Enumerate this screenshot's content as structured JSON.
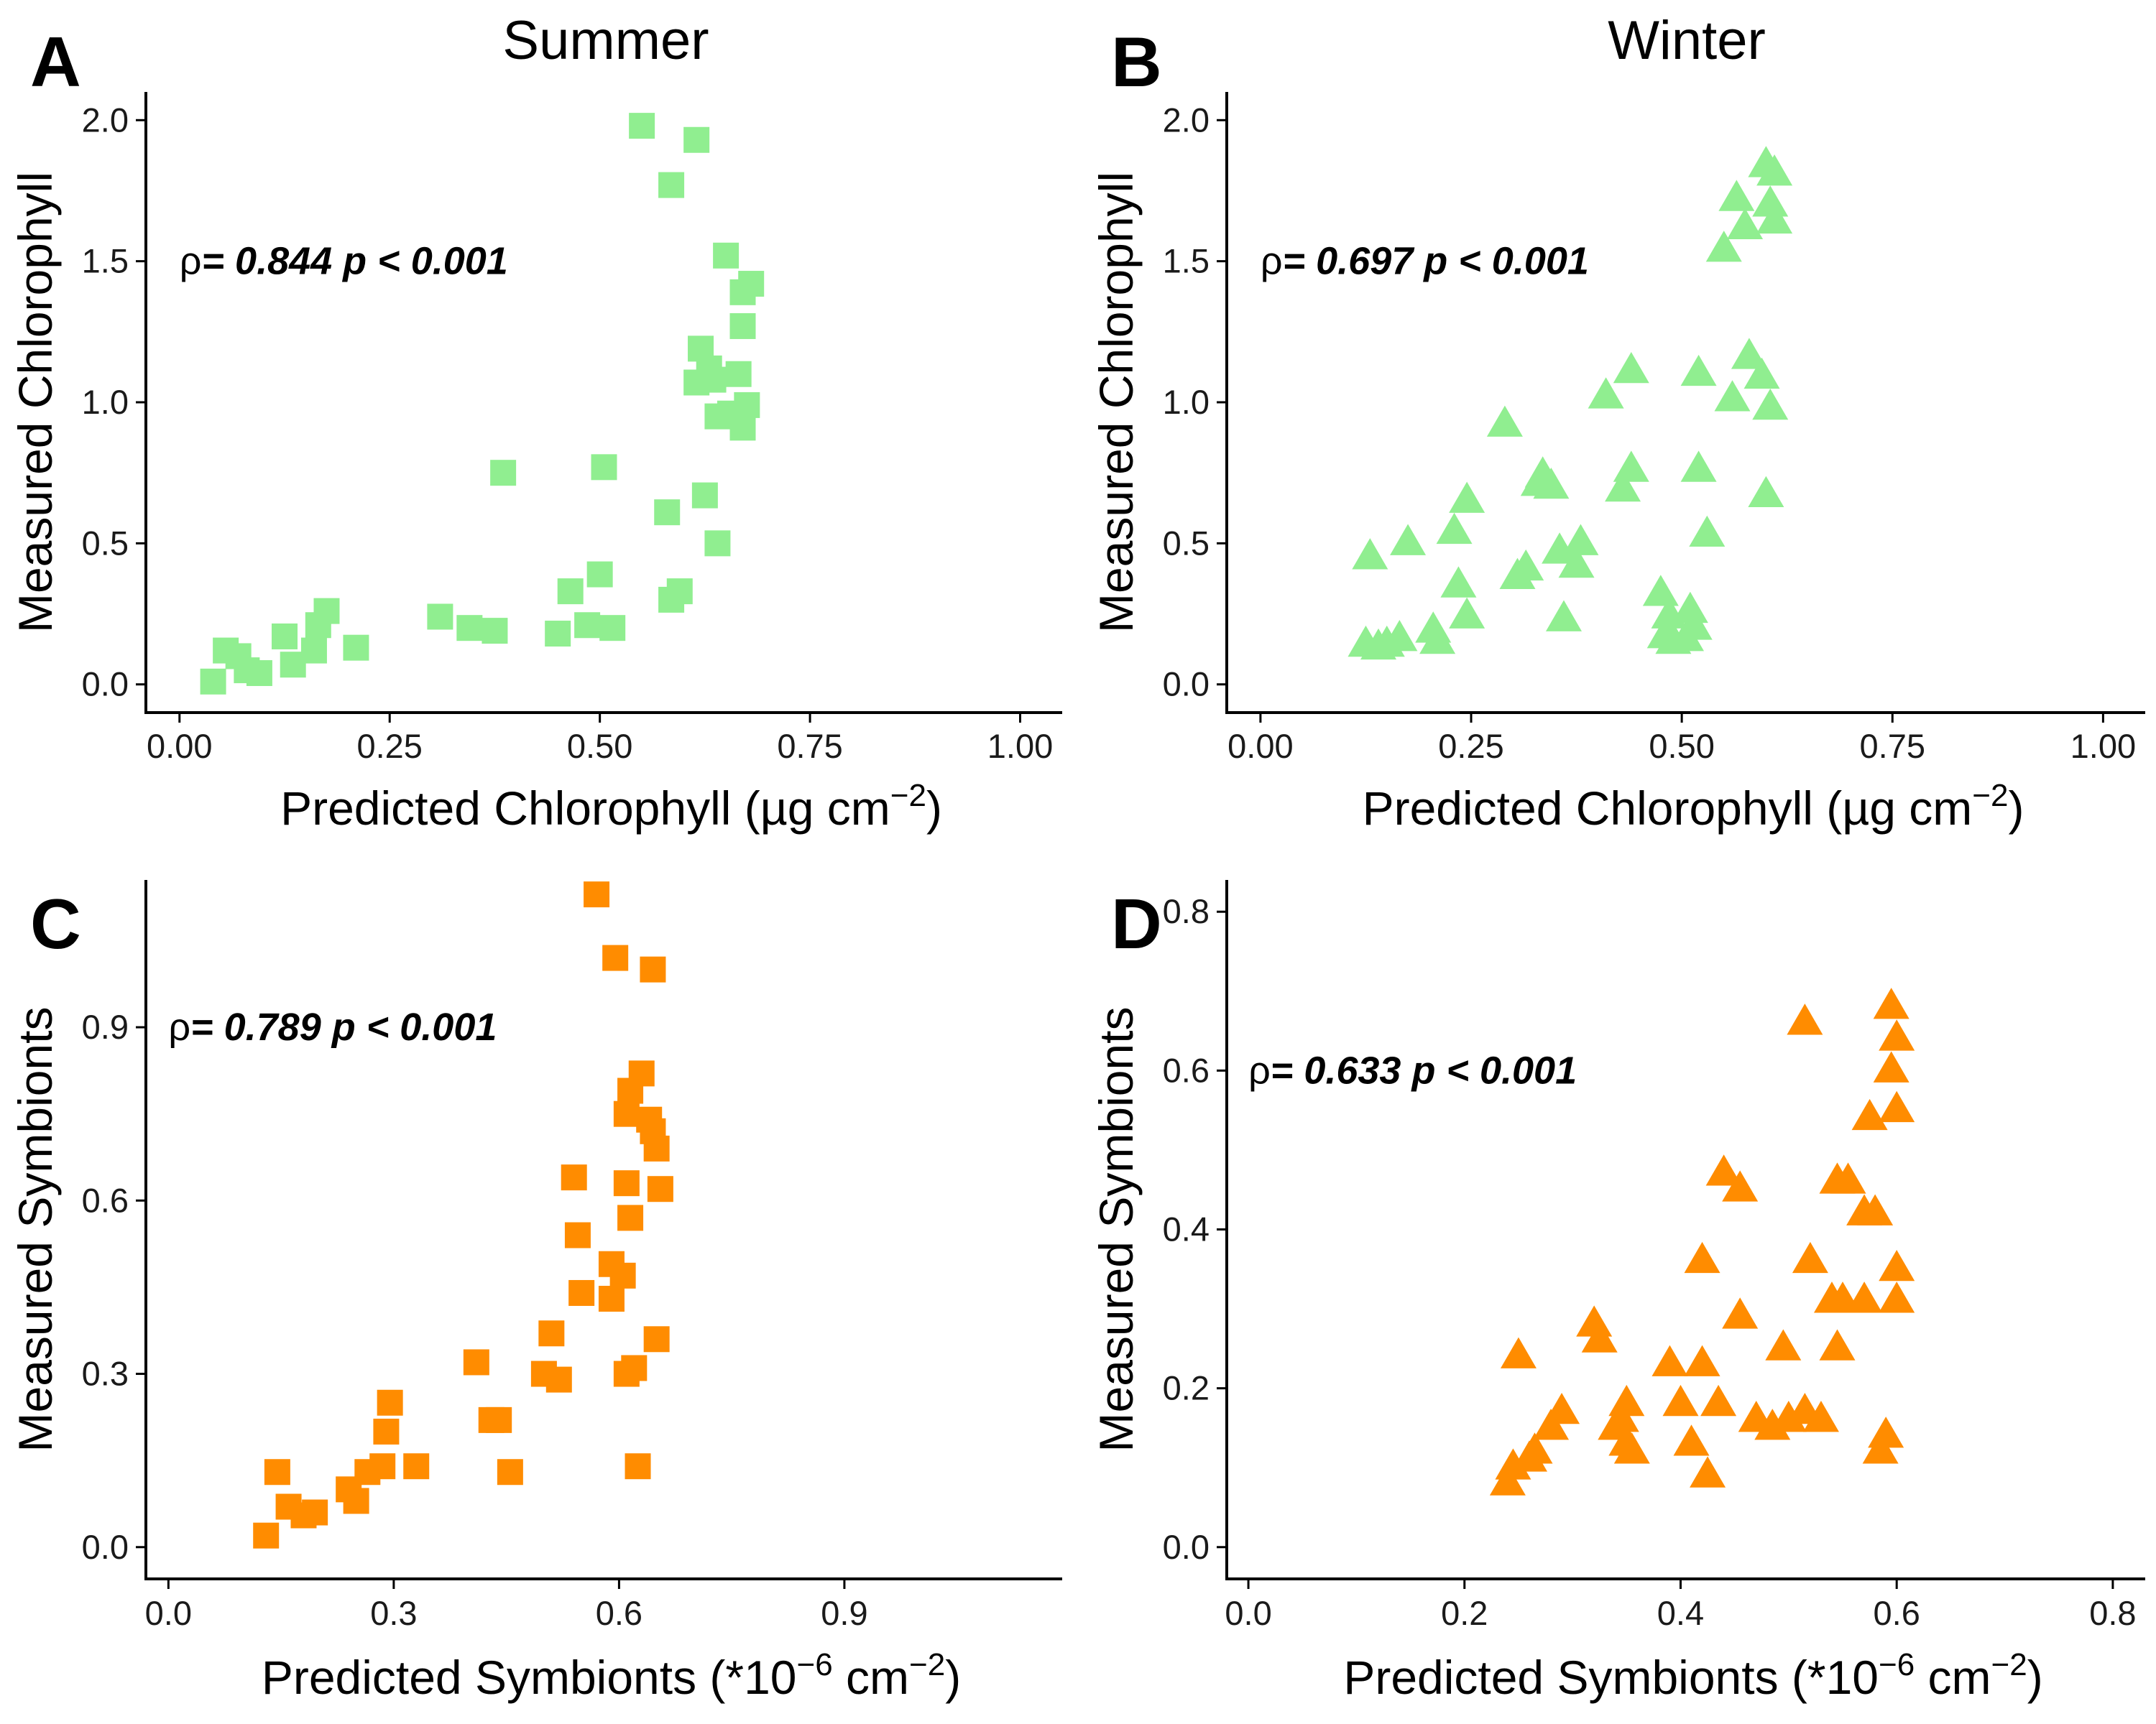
{
  "figure": {
    "column_titles": [
      "Summer",
      "Winter"
    ]
  },
  "chart_data": [
    {
      "id": "A",
      "type": "scatter",
      "panel_label": "A",
      "title": "Summer",
      "xlabel": "Predicted Chlorophyll (µg cm",
      "xlabel_sup": "−2",
      "xlabel_end": ")",
      "ylabel": "Measured Chlorophyll",
      "xlim": [
        -0.04,
        1.05
      ],
      "ylim": [
        -0.1,
        2.1
      ],
      "xticks": [
        0.0,
        0.25,
        0.5,
        0.75,
        1.0
      ],
      "xtick_labels": [
        "0.00",
        "0.25",
        "0.50",
        "0.75",
        "1.00"
      ],
      "yticks": [
        0.0,
        0.5,
        1.0,
        1.5,
        2.0
      ],
      "ytick_labels": [
        "0.0",
        "0.5",
        "1.0",
        "1.5",
        "2.0"
      ],
      "annotation": {
        "rho_symbol": "ρ",
        "text": "= 0.844  p < 0.001",
        "x": 0.0,
        "y": 1.5
      },
      "marker": "square",
      "color": "#90ee90",
      "points": [
        [
          0.04,
          0.01
        ],
        [
          0.055,
          0.12
        ],
        [
          0.07,
          0.1
        ],
        [
          0.08,
          0.05
        ],
        [
          0.095,
          0.04
        ],
        [
          0.125,
          0.17
        ],
        [
          0.135,
          0.07
        ],
        [
          0.16,
          0.12
        ],
        [
          0.165,
          0.21
        ],
        [
          0.175,
          0.26
        ],
        [
          0.21,
          0.13
        ],
        [
          0.31,
          0.24
        ],
        [
          0.345,
          0.2
        ],
        [
          0.375,
          0.19
        ],
        [
          0.385,
          0.75
        ],
        [
          0.45,
          0.18
        ],
        [
          0.465,
          0.33
        ],
        [
          0.485,
          0.21
        ],
        [
          0.5,
          0.39
        ],
        [
          0.505,
          0.77
        ],
        [
          0.515,
          0.2
        ],
        [
          0.55,
          1.98
        ],
        [
          0.58,
          0.61
        ],
        [
          0.585,
          1.77
        ],
        [
          0.585,
          0.3
        ],
        [
          0.595,
          0.33
        ],
        [
          0.615,
          1.07
        ],
        [
          0.615,
          1.93
        ],
        [
          0.62,
          1.19
        ],
        [
          0.625,
          0.67
        ],
        [
          0.63,
          1.12
        ],
        [
          0.635,
          1.08
        ],
        [
          0.64,
          0.95
        ],
        [
          0.64,
          0.5
        ],
        [
          0.65,
          1.52
        ],
        [
          0.655,
          0.96
        ],
        [
          0.665,
          1.1
        ],
        [
          0.67,
          1.27
        ],
        [
          0.67,
          0.91
        ],
        [
          0.67,
          1.39
        ],
        [
          0.675,
          0.99
        ],
        [
          0.68,
          1.42
        ]
      ]
    },
    {
      "id": "B",
      "type": "scatter",
      "panel_label": "B",
      "title": "Winter",
      "xlabel": "Predicted Chlorophyll (µg cm",
      "xlabel_sup": "−2",
      "xlabel_end": ")",
      "ylabel": "Measured Chlorophyll",
      "xlim": [
        -0.04,
        1.05
      ],
      "ylim": [
        -0.1,
        2.1
      ],
      "xticks": [
        0.0,
        0.25,
        0.5,
        0.75,
        1.0
      ],
      "xtick_labels": [
        "0.00",
        "0.25",
        "0.50",
        "0.75",
        "1.00"
      ],
      "yticks": [
        0.0,
        0.5,
        1.0,
        1.5,
        2.0
      ],
      "ytick_labels": [
        "0.0",
        "0.5",
        "1.0",
        "1.5",
        "2.0"
      ],
      "annotation": {
        "rho_symbol": "ρ",
        "text": "= 0.697  p < 0.001",
        "x": 0.0,
        "y": 1.5
      },
      "marker": "triangle",
      "color": "#90ee90",
      "points": [
        [
          0.125,
          0.14
        ],
        [
          0.13,
          0.45
        ],
        [
          0.14,
          0.13
        ],
        [
          0.15,
          0.14
        ],
        [
          0.165,
          0.16
        ],
        [
          0.175,
          0.5
        ],
        [
          0.205,
          0.19
        ],
        [
          0.21,
          0.15
        ],
        [
          0.23,
          0.54
        ],
        [
          0.235,
          0.35
        ],
        [
          0.245,
          0.65
        ],
        [
          0.245,
          0.24
        ],
        [
          0.29,
          0.92
        ],
        [
          0.305,
          0.38
        ],
        [
          0.315,
          0.41
        ],
        [
          0.33,
          0.71
        ],
        [
          0.335,
          0.74
        ],
        [
          0.345,
          0.7
        ],
        [
          0.355,
          0.47
        ],
        [
          0.36,
          0.23
        ],
        [
          0.375,
          0.42
        ],
        [
          0.38,
          0.5
        ],
        [
          0.41,
          1.02
        ],
        [
          0.43,
          0.69
        ],
        [
          0.44,
          0.76
        ],
        [
          0.44,
          1.11
        ],
        [
          0.475,
          0.32
        ],
        [
          0.48,
          0.17
        ],
        [
          0.485,
          0.24
        ],
        [
          0.49,
          0.15
        ],
        [
          0.505,
          0.16
        ],
        [
          0.51,
          0.26
        ],
        [
          0.515,
          0.2
        ],
        [
          0.52,
          1.1
        ],
        [
          0.52,
          0.76
        ],
        [
          0.53,
          0.53
        ],
        [
          0.55,
          1.54
        ],
        [
          0.56,
          1.01
        ],
        [
          0.565,
          1.72
        ],
        [
          0.575,
          1.62
        ],
        [
          0.58,
          1.16
        ],
        [
          0.595,
          1.09
        ],
        [
          0.6,
          1.84
        ],
        [
          0.6,
          0.67
        ],
        [
          0.605,
          1.7
        ],
        [
          0.605,
          0.98
        ],
        [
          0.61,
          1.81
        ],
        [
          0.61,
          1.64
        ]
      ]
    },
    {
      "id": "C",
      "type": "scatter",
      "panel_label": "C",
      "title": "",
      "xlabel": "Predicted Symbionts (*10",
      "xlabel_sup": "−6",
      "xlabel_mid": " cm",
      "xlabel_sup2": "−2",
      "xlabel_end": ")",
      "ylabel": "Measured Symbionts",
      "xlim": [
        -0.03,
        1.19
      ],
      "ylim": [
        -0.055,
        1.155
      ],
      "xticks": [
        0.0,
        0.3,
        0.6,
        0.9
      ],
      "xtick_labels": [
        "0.0",
        "0.3",
        "0.6",
        "0.9"
      ],
      "yticks": [
        0.0,
        0.3,
        0.6,
        0.9
      ],
      "ytick_labels": [
        "0.0",
        "0.3",
        "0.6",
        "0.9"
      ],
      "annotation": {
        "rho_symbol": "ρ",
        "text": "= 0.789  p < 0.001",
        "x": 0.0,
        "y": 0.9
      },
      "marker": "square",
      "color": "#ff8c00",
      "points": [
        [
          0.13,
          0.02
        ],
        [
          0.145,
          0.13
        ],
        [
          0.16,
          0.07
        ],
        [
          0.18,
          0.055
        ],
        [
          0.195,
          0.06
        ],
        [
          0.24,
          0.1
        ],
        [
          0.25,
          0.08
        ],
        [
          0.265,
          0.13
        ],
        [
          0.285,
          0.14
        ],
        [
          0.29,
          0.2
        ],
        [
          0.295,
          0.25
        ],
        [
          0.33,
          0.14
        ],
        [
          0.41,
          0.32
        ],
        [
          0.43,
          0.22
        ],
        [
          0.44,
          0.22
        ],
        [
          0.455,
          0.13
        ],
        [
          0.5,
          0.3
        ],
        [
          0.51,
          0.37
        ],
        [
          0.52,
          0.29
        ],
        [
          0.54,
          0.64
        ],
        [
          0.545,
          0.54
        ],
        [
          0.55,
          0.44
        ],
        [
          0.57,
          1.13
        ],
        [
          0.59,
          0.43
        ],
        [
          0.59,
          0.49
        ],
        [
          0.595,
          1.02
        ],
        [
          0.605,
          0.47
        ],
        [
          0.61,
          0.3
        ],
        [
          0.61,
          0.75
        ],
        [
          0.61,
          0.63
        ],
        [
          0.615,
          0.57
        ],
        [
          0.615,
          0.79
        ],
        [
          0.62,
          0.31
        ],
        [
          0.625,
          0.14
        ],
        [
          0.63,
          0.82
        ],
        [
          0.64,
          0.74
        ],
        [
          0.645,
          1.0
        ],
        [
          0.645,
          0.72
        ],
        [
          0.65,
          0.69
        ],
        [
          0.65,
          0.36
        ],
        [
          0.655,
          0.62
        ]
      ]
    },
    {
      "id": "D",
      "type": "scatter",
      "panel_label": "D",
      "title": "",
      "xlabel": "Predicted Symbionts (*10",
      "xlabel_sup": "−6",
      "xlabel_mid": " cm",
      "xlabel_sup2": "−2",
      "xlabel_end": ")",
      "ylabel": "Measured Symbionts",
      "xlim": [
        -0.02,
        0.83
      ],
      "ylim": [
        -0.04,
        0.84
      ],
      "xticks": [
        0.0,
        0.2,
        0.4,
        0.6,
        0.8
      ],
      "xtick_labels": [
        "0.0",
        "0.2",
        "0.4",
        "0.6",
        "0.8"
      ],
      "yticks": [
        0.0,
        0.2,
        0.4,
        0.6,
        0.8
      ],
      "ytick_labels": [
        "0.0",
        "0.2",
        "0.4",
        "0.6",
        "0.8"
      ],
      "annotation": {
        "rho_symbol": "ρ",
        "text": "= 0.633  p < 0.001",
        "x": 0.0,
        "y": 0.6
      },
      "marker": "triangle",
      "color": "#ff8c00",
      "points": [
        [
          0.24,
          0.08
        ],
        [
          0.245,
          0.1
        ],
        [
          0.25,
          0.24
        ],
        [
          0.26,
          0.11
        ],
        [
          0.265,
          0.12
        ],
        [
          0.28,
          0.15
        ],
        [
          0.29,
          0.17
        ],
        [
          0.32,
          0.28
        ],
        [
          0.325,
          0.26
        ],
        [
          0.34,
          0.15
        ],
        [
          0.345,
          0.16
        ],
        [
          0.35,
          0.13
        ],
        [
          0.35,
          0.18
        ],
        [
          0.355,
          0.12
        ],
        [
          0.39,
          0.23
        ],
        [
          0.4,
          0.18
        ],
        [
          0.41,
          0.13
        ],
        [
          0.42,
          0.23
        ],
        [
          0.42,
          0.36
        ],
        [
          0.425,
          0.09
        ],
        [
          0.435,
          0.18
        ],
        [
          0.44,
          0.47
        ],
        [
          0.455,
          0.29
        ],
        [
          0.455,
          0.45
        ],
        [
          0.47,
          0.16
        ],
        [
          0.485,
          0.15
        ],
        [
          0.495,
          0.25
        ],
        [
          0.5,
          0.16
        ],
        [
          0.515,
          0.66
        ],
        [
          0.515,
          0.17
        ],
        [
          0.52,
          0.36
        ],
        [
          0.53,
          0.16
        ],
        [
          0.54,
          0.31
        ],
        [
          0.545,
          0.46
        ],
        [
          0.545,
          0.25
        ],
        [
          0.55,
          0.31
        ],
        [
          0.555,
          0.46
        ],
        [
          0.57,
          0.31
        ],
        [
          0.57,
          0.42
        ],
        [
          0.575,
          0.54
        ],
        [
          0.58,
          0.42
        ],
        [
          0.585,
          0.12
        ],
        [
          0.59,
          0.14
        ],
        [
          0.595,
          0.68
        ],
        [
          0.595,
          0.6
        ],
        [
          0.6,
          0.35
        ],
        [
          0.6,
          0.64
        ],
        [
          0.6,
          0.31
        ],
        [
          0.6,
          0.55
        ]
      ]
    }
  ]
}
